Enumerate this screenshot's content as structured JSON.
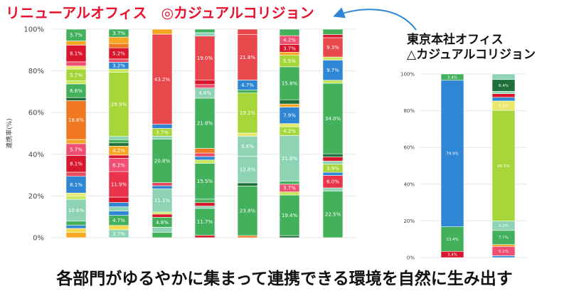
{
  "titles": {
    "left": "リニューアルオフィス　◎カジュアルコリジョン",
    "right_line1": "東京本社オフィス",
    "right_line2": "△カジュアルコリジョン",
    "bottom": "各部門がゆるやかに集まって連携できる環境を自然に生み出す"
  },
  "chart_data": [
    {
      "type": "bar",
      "stacked": true,
      "title": "リニューアルオフィス",
      "ylabel": "連携率(%)",
      "yticks": [
        "0%",
        "20%",
        "40%",
        "60%",
        "80%",
        "100%"
      ],
      "ylim": [
        0,
        100
      ],
      "grid": true,
      "bars": [
        {
          "segments": [
            {
              "value": 2.5,
              "color": "#f5a623",
              "label": ""
            },
            {
              "value": 2.0,
              "color": "#f2d94e",
              "label": ""
            },
            {
              "value": 1.5,
              "color": "#2e86d4",
              "label": ""
            },
            {
              "value": 2.0,
              "color": "#43b05c",
              "label": ""
            },
            {
              "value": 10.6,
              "color": "#8dd3b4",
              "label": "10.6%"
            },
            {
              "value": 1.5,
              "color": "#c7e85a",
              "label": ""
            },
            {
              "value": 1.5,
              "color": "#e8e86a",
              "label": ""
            },
            {
              "value": 8.1,
              "color": "#2e86d4",
              "label": "8.1%"
            },
            {
              "value": 2.0,
              "color": "#e84a5f",
              "label": ""
            },
            {
              "value": 8.1,
              "color": "#d8162c",
              "label": "8.1%"
            },
            {
              "value": 5.7,
              "color": "#ee4f72",
              "label": "5.7%"
            },
            {
              "value": 2.0,
              "color": "#f5a623",
              "label": ""
            },
            {
              "value": 18.8,
              "color": "#f07820",
              "label": "18.8%"
            },
            {
              "value": 1.5,
              "color": "#1e6f3a",
              "label": ""
            },
            {
              "value": 6.6,
              "color": "#43b05c",
              "label": "6.6%"
            },
            {
              "value": 1.5,
              "color": "#c7e85a",
              "label": ""
            },
            {
              "value": 5.7,
              "color": "#a7d63b",
              "label": "5.7%"
            },
            {
              "value": 1.5,
              "color": "#e8e86a",
              "label": ""
            },
            {
              "value": 2.0,
              "color": "#ee4f72",
              "label": ""
            },
            {
              "value": 8.1,
              "color": "#d8162c",
              "label": "8.1%"
            },
            {
              "value": 2.0,
              "color": "#f5a623",
              "label": ""
            },
            {
              "value": 5.7,
              "color": "#43b05c",
              "label": "5.7%"
            }
          ]
        },
        {
          "segments": [
            {
              "value": 3.7,
              "color": "#8dd3b4",
              "label": "3.7%"
            },
            {
              "value": 2.0,
              "color": "#f2d94e",
              "label": ""
            },
            {
              "value": 4.7,
              "color": "#43b05c",
              "label": "4.7%"
            },
            {
              "value": 2.0,
              "color": "#2e86d4",
              "label": ""
            },
            {
              "value": 2.0,
              "color": "#8dd3b4",
              "label": ""
            },
            {
              "value": 2.0,
              "color": "#2e86d4",
              "label": ""
            },
            {
              "value": 2.5,
              "color": "#d8162c",
              "label": ""
            },
            {
              "value": 11.9,
              "color": "#e8334a",
              "label": "11.9%"
            },
            {
              "value": 6.2,
              "color": "#ee4f72",
              "label": "6.2%"
            },
            {
              "value": 1.5,
              "color": "#d8162c",
              "label": ""
            },
            {
              "value": 4.2,
              "color": "#f5a623",
              "label": "4.2%"
            },
            {
              "value": 1.5,
              "color": "#1e6f3a",
              "label": ""
            },
            {
              "value": 1.5,
              "color": "#43b05c",
              "label": ""
            },
            {
              "value": 1.5,
              "color": "#8dd3b4",
              "label": ""
            },
            {
              "value": 29.9,
              "color": "#a7d63b",
              "label": "29.9%"
            },
            {
              "value": 1.5,
              "color": "#c7e85a",
              "label": ""
            },
            {
              "value": 3.2,
              "color": "#2e86d4",
              "label": "3.2%"
            },
            {
              "value": 1.5,
              "color": "#e84a5f",
              "label": ""
            },
            {
              "value": 5.2,
              "color": "#d8162c",
              "label": "5.2%"
            },
            {
              "value": 2.0,
              "color": "#f07820",
              "label": ""
            },
            {
              "value": 3.0,
              "color": "#f5a623",
              "label": ""
            },
            {
              "value": 3.7,
              "color": "#43b05c",
              "label": "3.7%"
            }
          ]
        },
        {
          "segments": [
            {
              "value": 2.5,
              "color": "#43b05c",
              "label": ""
            },
            {
              "value": 2.5,
              "color": "#8dd3b4",
              "label": ""
            },
            {
              "value": 4.8,
              "color": "#43b05c",
              "label": "4.8%"
            },
            {
              "value": 1.5,
              "color": "#d8162c",
              "label": ""
            },
            {
              "value": 1.0,
              "color": "#c7e85a",
              "label": ""
            },
            {
              "value": 11.1,
              "color": "#8dd3b4",
              "label": "11.1%"
            },
            {
              "value": 1.5,
              "color": "#2e86d4",
              "label": ""
            },
            {
              "value": 1.5,
              "color": "#e84a5f",
              "label": ""
            },
            {
              "value": 20.8,
              "color": "#43b05c",
              "label": "20.8%"
            },
            {
              "value": 1.5,
              "color": "#8dd3b4",
              "label": ""
            },
            {
              "value": 3.7,
              "color": "#a7d63b",
              "label": "3.7%"
            },
            {
              "value": 2.0,
              "color": "#2e86d4",
              "label": ""
            },
            {
              "value": 43.2,
              "color": "#e8474c",
              "label": "43.2%"
            },
            {
              "value": 2.4,
              "color": "#f5a623",
              "label": ""
            }
          ]
        },
        {
          "segments": [
            {
              "value": 1.0,
              "color": "#d8162c",
              "label": ""
            },
            {
              "value": 11.7,
              "color": "#43b05c",
              "label": "11.7%"
            },
            {
              "value": 1.0,
              "color": "#8dd3b4",
              "label": ""
            },
            {
              "value": 1.5,
              "color": "#d8162c",
              "label": ""
            },
            {
              "value": 1.5,
              "color": "#43b05c",
              "label": ""
            },
            {
              "value": 15.5,
              "color": "#43b05c",
              "label": "15.5%"
            },
            {
              "value": 1.5,
              "color": "#c7e85a",
              "label": ""
            },
            {
              "value": 1.5,
              "color": "#2e86d4",
              "label": ""
            },
            {
              "value": 1.5,
              "color": "#e84a5f",
              "label": ""
            },
            {
              "value": 2.0,
              "color": "#f07820",
              "label": ""
            },
            {
              "value": 21.8,
              "color": "#43b05c",
              "label": "21.8%"
            },
            {
              "value": 4.4,
              "color": "#8dd3b4",
              "label": "4.4%"
            },
            {
              "value": 1.5,
              "color": "#ee4f72",
              "label": ""
            },
            {
              "value": 2.0,
              "color": "#d8162c",
              "label": ""
            },
            {
              "value": 19.0,
              "color": "#e8474c",
              "label": "19.0%"
            },
            {
              "value": 1.5,
              "color": "#8dd3b4",
              "label": ""
            },
            {
              "value": 1.5,
              "color": "#43b05c",
              "label": ""
            }
          ]
        },
        {
          "segments": [
            {
              "value": 1.0,
              "color": "#f07820",
              "label": ""
            },
            {
              "value": 23.8,
              "color": "#43b05c",
              "label": "23.8%"
            },
            {
              "value": 1.5,
              "color": "#1e6f3a",
              "label": ""
            },
            {
              "value": 12.8,
              "color": "#8dd3b4",
              "label": "12.8%"
            },
            {
              "value": 9.6,
              "color": "#8dd3b4",
              "label": "9.6%"
            },
            {
              "value": 1.5,
              "color": "#e8e86a",
              "label": ""
            },
            {
              "value": 19.2,
              "color": "#a7d63b",
              "label": "19.2%"
            },
            {
              "value": 1.5,
              "color": "#43b05c",
              "label": ""
            },
            {
              "value": 4.7,
              "color": "#2e86d4",
              "label": "4.7%"
            },
            {
              "value": 21.8,
              "color": "#e8474c",
              "label": "21.8%"
            },
            {
              "value": 2.6,
              "color": "#e8474c",
              "label": ""
            }
          ]
        },
        {
          "segments": [
            {
              "value": 1.0,
              "color": "#1e6f3a",
              "label": ""
            },
            {
              "value": 19.4,
              "color": "#43b05c",
              "label": "19.4%"
            },
            {
              "value": 1.5,
              "color": "#c7e85a",
              "label": ""
            },
            {
              "value": 3.7,
              "color": "#ee4f72",
              "label": "3.7%"
            },
            {
              "value": 1.5,
              "color": "#43b05c",
              "label": ""
            },
            {
              "value": 21.8,
              "color": "#8dd3b4",
              "label": "21.8%"
            },
            {
              "value": 4.2,
              "color": "#a7d63b",
              "label": "4.2%"
            },
            {
              "value": 1.5,
              "color": "#e8e86a",
              "label": ""
            },
            {
              "value": 7.9,
              "color": "#2e86d4",
              "label": "7.9%"
            },
            {
              "value": 1.5,
              "color": "#f5a623",
              "label": ""
            },
            {
              "value": 2.0,
              "color": "#1e6f3a",
              "label": ""
            },
            {
              "value": 15.8,
              "color": "#43b05c",
              "label": "15.8%"
            },
            {
              "value": 5.5,
              "color": "#a7d63b",
              "label": "5.5%"
            },
            {
              "value": 1.5,
              "color": "#f5a623",
              "label": ""
            },
            {
              "value": 3.7,
              "color": "#d8162c",
              "label": "3.7%"
            },
            {
              "value": 4.2,
              "color": "#ee4f72",
              "label": "4.2%"
            },
            {
              "value": 3.1,
              "color": "#43b05c",
              "label": ""
            }
          ]
        },
        {
          "segments": [
            {
              "value": 22.5,
              "color": "#43b05c",
              "label": "22.5%"
            },
            {
              "value": 1.5,
              "color": "#8dd3b4",
              "label": ""
            },
            {
              "value": 6.0,
              "color": "#e8334a",
              "label": "6.0%"
            },
            {
              "value": 1.5,
              "color": "#2e86d4",
              "label": ""
            },
            {
              "value": 3.9,
              "color": "#a7d63b",
              "label": "3.9%"
            },
            {
              "value": 1.5,
              "color": "#8dd3b4",
              "label": ""
            },
            {
              "value": 2.0,
              "color": "#d8162c",
              "label": ""
            },
            {
              "value": 1.5,
              "color": "#1e6f3a",
              "label": ""
            },
            {
              "value": 34.0,
              "color": "#43b05c",
              "label": "34.0%"
            },
            {
              "value": 1.5,
              "color": "#c7e85a",
              "label": ""
            },
            {
              "value": 9.7,
              "color": "#2e86d4",
              "label": "9.7%"
            },
            {
              "value": 1.5,
              "color": "#c7e85a",
              "label": ""
            },
            {
              "value": 9.3,
              "color": "#e8474c",
              "label": "9.3%"
            },
            {
              "value": 1.5,
              "color": "#d8162c",
              "label": ""
            },
            {
              "value": 2.6,
              "color": "#43b05c",
              "label": ""
            }
          ]
        }
      ]
    },
    {
      "type": "bar",
      "stacked": true,
      "title": "東京本社オフィス",
      "yticks": [
        "0%",
        "20%",
        "40%",
        "60%",
        "80%",
        "100%"
      ],
      "ylim": [
        0,
        100
      ],
      "grid": true,
      "bars": [
        {
          "segments": [
            {
              "value": 3.4,
              "color": "#d8162c",
              "label": "3.4%"
            },
            {
              "value": 13.4,
              "color": "#43b05c",
              "label": "13.4%"
            },
            {
              "value": 79.9,
              "color": "#2e86d4",
              "label": "79.9%"
            },
            {
              "value": 3.4,
              "color": "#43b05c",
              "label": "3.4%"
            }
          ]
        },
        {
          "segments": [
            {
              "value": 1.0,
              "color": "#2e86d4",
              "label": ""
            },
            {
              "value": 5.1,
              "color": "#ee4f72",
              "label": "5.1%"
            },
            {
              "value": 1.0,
              "color": "#f5a623",
              "label": ""
            },
            {
              "value": 7.7,
              "color": "#43b05c",
              "label": "7.7%"
            },
            {
              "value": 5.1,
              "color": "#8dd3b4",
              "label": "5.1%"
            },
            {
              "value": 60.3,
              "color": "#a7d63b",
              "label": "60.3%"
            },
            {
              "value": 5.1,
              "color": "#e8e86a",
              "label": "5.1%"
            },
            {
              "value": 2.0,
              "color": "#2e86d4",
              "label": ""
            },
            {
              "value": 2.0,
              "color": "#d8162c",
              "label": ""
            },
            {
              "value": 1.3,
              "color": "#8dd3b4",
              "label": ""
            },
            {
              "value": 6.4,
              "color": "#1e6f3a",
              "label": "6.4%"
            },
            {
              "value": 3.0,
              "color": "#8dd3b4",
              "label": ""
            }
          ]
        }
      ]
    }
  ]
}
